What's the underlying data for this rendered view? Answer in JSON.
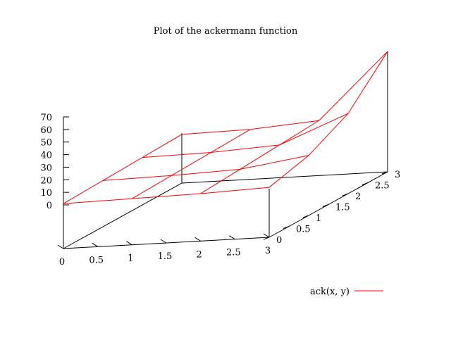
{
  "chart_data": {
    "type": "surface",
    "title": "Plot of the ackermann function",
    "x": [
      0,
      1,
      2,
      3
    ],
    "y": [
      0,
      1,
      2,
      3
    ],
    "z": [
      [
        1,
        2,
        3,
        4
      ],
      [
        2,
        3,
        4,
        5
      ],
      [
        3,
        5,
        7,
        9
      ],
      [
        5,
        13,
        29,
        61
      ]
    ],
    "zlim": [
      0,
      70
    ],
    "x_ticks": [
      "0",
      "0.5",
      "1",
      "1.5",
      "2",
      "2.5",
      "3"
    ],
    "y_ticks": [
      "0",
      "0.5",
      "1",
      "1.5",
      "2",
      "2.5",
      "3"
    ],
    "z_ticks": [
      "0",
      "10",
      "20",
      "30",
      "40",
      "50",
      "60",
      "70"
    ],
    "series": [
      {
        "name": "ack(x, y)",
        "color": "#ff0000"
      }
    ],
    "legend_position": "bottom-right",
    "axis_color": "#000000"
  }
}
